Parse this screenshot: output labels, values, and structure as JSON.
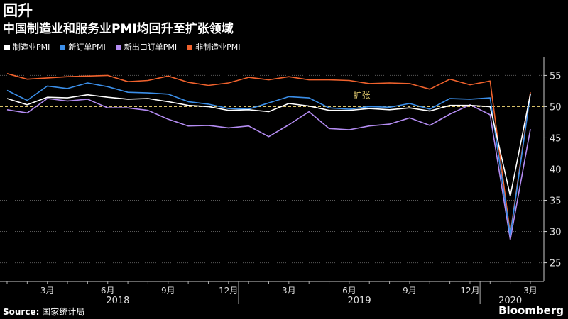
{
  "chart_data": {
    "type": "line",
    "title": "回升",
    "subtitle": "中国制造业和服务业PMI均回升至扩张领域",
    "x": [
      "2018-01",
      "2018-02",
      "2018-03",
      "2018-04",
      "2018-05",
      "2018-06",
      "2018-07",
      "2018-08",
      "2018-09",
      "2018-10",
      "2018-11",
      "2018-12",
      "2019-01",
      "2019-02",
      "2019-03",
      "2019-04",
      "2019-05",
      "2019-06",
      "2019-07",
      "2019-08",
      "2019-09",
      "2019-10",
      "2019-11",
      "2019-12",
      "2020-01",
      "2020-02",
      "2020-03"
    ],
    "series": [
      {
        "name": "制造业PMI",
        "color": "#ffffff",
        "values": [
          51.3,
          50.3,
          51.5,
          51.4,
          51.9,
          51.5,
          51.2,
          51.3,
          50.8,
          50.2,
          50.0,
          49.4,
          49.5,
          49.2,
          50.5,
          50.1,
          49.4,
          49.4,
          49.7,
          49.5,
          49.8,
          49.3,
          50.2,
          50.2,
          50.0,
          35.7,
          52.0
        ]
      },
      {
        "name": "新订单PMI",
        "color": "#3b8ee8",
        "values": [
          52.6,
          51.0,
          53.3,
          52.9,
          53.8,
          53.2,
          52.3,
          52.2,
          52.0,
          50.8,
          50.4,
          49.7,
          49.6,
          50.6,
          51.6,
          51.4,
          49.8,
          49.6,
          50.0,
          49.9,
          50.5,
          49.6,
          51.3,
          51.2,
          51.4,
          29.3,
          52.0
        ]
      },
      {
        "name": "新出口订单PMI",
        "color": "#b48cf2",
        "values": [
          49.5,
          49.0,
          51.3,
          50.9,
          51.2,
          49.8,
          49.8,
          49.4,
          48.0,
          46.9,
          47.0,
          46.6,
          46.9,
          45.2,
          47.1,
          49.2,
          46.5,
          46.3,
          46.9,
          47.2,
          48.2,
          47.0,
          48.8,
          50.3,
          48.7,
          28.7,
          46.4
        ]
      },
      {
        "name": "非制造业PMI",
        "color": "#f0622d",
        "values": [
          55.3,
          54.4,
          54.6,
          54.8,
          54.9,
          55.0,
          54.0,
          54.2,
          54.9,
          53.9,
          53.4,
          53.8,
          54.7,
          54.3,
          54.8,
          54.3,
          54.3,
          54.2,
          53.7,
          53.8,
          53.7,
          52.8,
          54.4,
          53.5,
          54.1,
          29.6,
          52.3
        ]
      }
    ],
    "ylim": [
      22,
      58
    ],
    "yticks": [
      25,
      30,
      35,
      40,
      45,
      50,
      55
    ],
    "reference_line": {
      "value": 50,
      "label": "扩张",
      "color": "#d9c26a"
    },
    "x_tick_labels": [
      {
        "at": "2018-03",
        "label": "3月"
      },
      {
        "at": "2018-06",
        "label": "6月"
      },
      {
        "at": "2018-09",
        "label": "9月"
      },
      {
        "at": "2018-12",
        "label": "12月"
      },
      {
        "at": "2019-03",
        "label": "3月"
      },
      {
        "at": "2019-06",
        "label": "6月"
      },
      {
        "at": "2019-09",
        "label": "9月"
      },
      {
        "at": "2019-12",
        "label": "12月"
      },
      {
        "at": "2020-03",
        "label": "3月"
      }
    ],
    "year_labels": [
      "2018",
      "2019",
      "2020"
    ],
    "grid": true,
    "legend_position": "top-left"
  },
  "footer": {
    "source_label": "Source:",
    "source_text": "国家统计局",
    "brand": "Bloomberg"
  }
}
